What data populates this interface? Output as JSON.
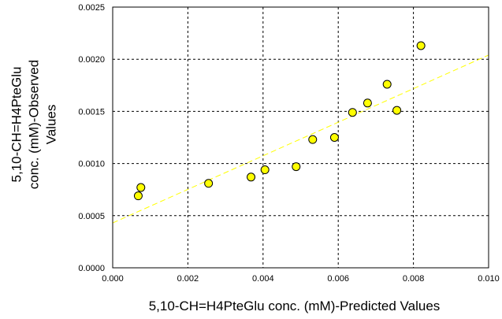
{
  "chart_data": {
    "type": "scatter",
    "xlabel": "5,10-CH=H4PteGlu conc. (mM)-Predicted Values",
    "ylabel_lines": [
      "5,10-CH=H4PteGlu",
      "conc. (mM)-Observed",
      "Values"
    ],
    "xlim": [
      0,
      0.01
    ],
    "ylim": [
      0,
      0.0025
    ],
    "x_ticks": [
      "0.000",
      "0.002",
      "0.004",
      "0.006",
      "0.008",
      "0.010"
    ],
    "y_ticks": [
      "0.0000",
      "0.0005",
      "0.0010",
      "0.0015",
      "0.0020",
      "0.0025"
    ],
    "grid": true,
    "grid_style": "dashed",
    "series": [
      {
        "points": [
          {
            "x": 0.00068,
            "y": 0.00069
          },
          {
            "x": 0.00075,
            "y": 0.00077
          },
          {
            "x": 0.00255,
            "y": 0.00081
          },
          {
            "x": 0.00368,
            "y": 0.00087
          },
          {
            "x": 0.00405,
            "y": 0.00094
          },
          {
            "x": 0.00488,
            "y": 0.00097
          },
          {
            "x": 0.00532,
            "y": 0.00123
          },
          {
            "x": 0.0059,
            "y": 0.00125
          },
          {
            "x": 0.00638,
            "y": 0.00149
          },
          {
            "x": 0.00678,
            "y": 0.00158
          },
          {
            "x": 0.0073,
            "y": 0.00176
          },
          {
            "x": 0.00756,
            "y": 0.00151
          },
          {
            "x": 0.0082,
            "y": 0.00213
          }
        ],
        "marker_color": "#ffff00",
        "marker_edge": "#000000"
      }
    ],
    "trendline": {
      "x": [
        0,
        0.01
      ],
      "y": [
        0.00043,
        0.00204
      ],
      "color": "#ffff00",
      "style": "dashed"
    }
  }
}
